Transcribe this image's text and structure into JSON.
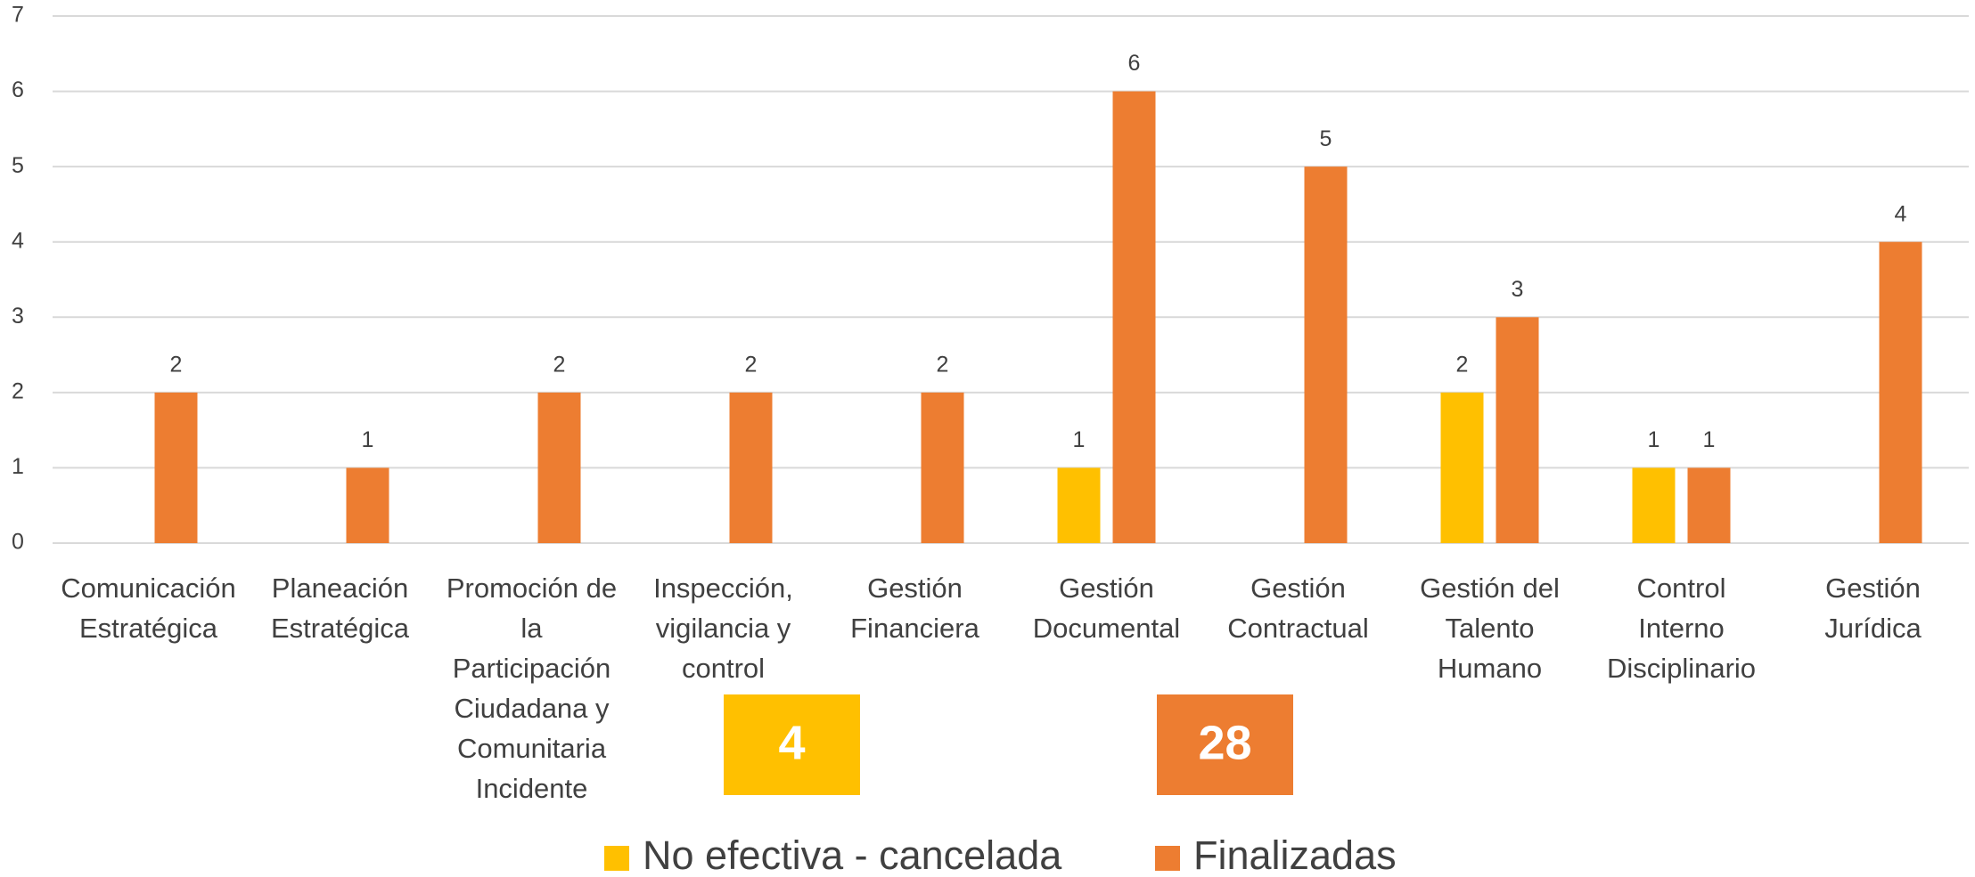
{
  "chart_data": {
    "type": "bar",
    "categories": [
      "Comunicación Estratégica",
      "Planeación Estratégica",
      "Promoción de la Participación Ciudadana y Comunitaria Incidente",
      "Inspección, vigilancia y control",
      "Gestión Financiera",
      "Gestión Documental",
      "Gestión Contractual",
      "Gestión del Talento Humano",
      "Control Interno Disciplinario",
      "Gestión Jurídica"
    ],
    "series": [
      {
        "name": "No efectiva - cancelada",
        "color": "#FFC000",
        "values": [
          null,
          null,
          null,
          null,
          null,
          1,
          null,
          2,
          1,
          null
        ],
        "total": 4
      },
      {
        "name": "Finalizadas",
        "color": "#ED7D31",
        "values": [
          2,
          1,
          2,
          2,
          2,
          6,
          5,
          3,
          1,
          4
        ],
        "total": 28
      }
    ],
    "ylim": [
      0,
      7
    ],
    "yticks": [
      0,
      1,
      2,
      3,
      4,
      5,
      6,
      7
    ],
    "grid": true,
    "legend": "bottom"
  }
}
